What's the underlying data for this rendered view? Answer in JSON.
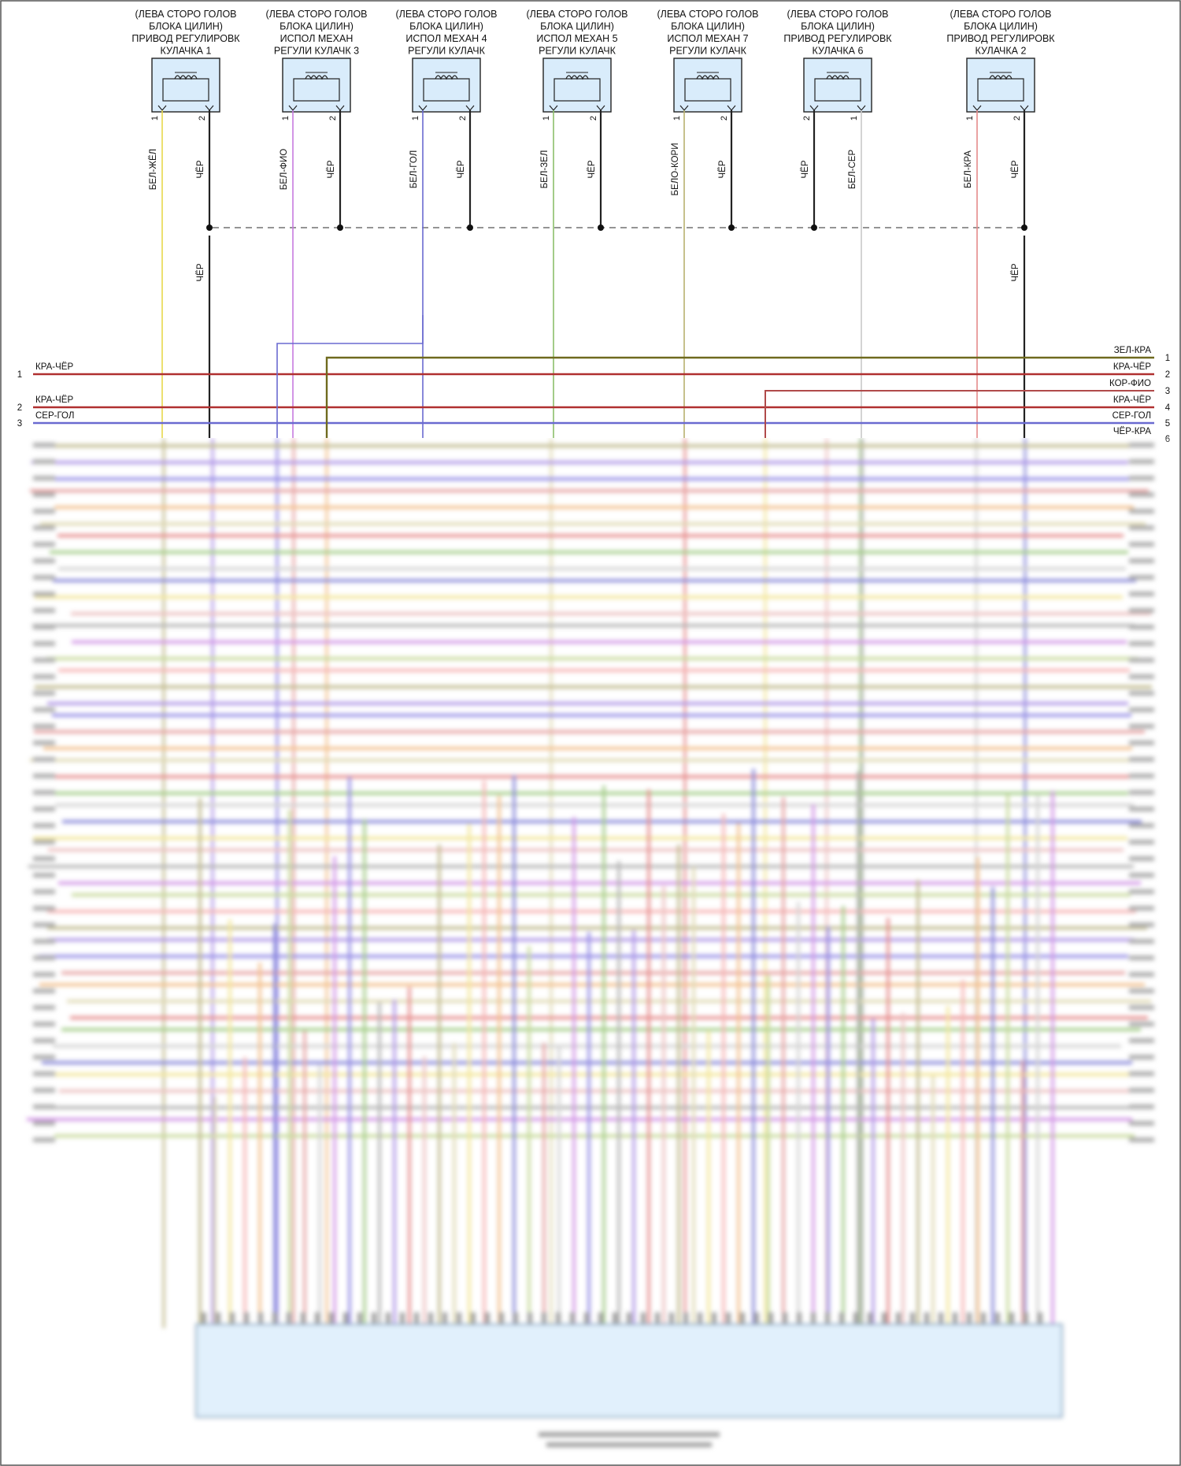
{
  "actuators": [
    {
      "id": "act-1",
      "title": [
        "(ЛЕВА СТОРО ГОЛОВ",
        "БЛОКА ЦИЛИН)",
        "ПРИВОД РЕГУЛИРОВК",
        "КУЛАЧКА 1"
      ],
      "pins": [
        {
          "num": "1",
          "wire": "БЕЛ-ЖЁЛ",
          "color": "#e8d84c"
        },
        {
          "num": "2",
          "wire": "ЧЁР",
          "color": "#222222"
        }
      ]
    },
    {
      "id": "act-3",
      "title": [
        "(ЛЕВА СТОРО ГОЛОВ",
        "БЛОКА ЦИЛИН)",
        "ИСПОЛ МЕХАН",
        "РЕГУЛИ КУЛАЧК 3"
      ],
      "pins": [
        {
          "num": "1",
          "wire": "БЕЛ-ФИО",
          "color": "#c77be0"
        },
        {
          "num": "2",
          "wire": "ЧЁР",
          "color": "#222222"
        }
      ]
    },
    {
      "id": "act-4",
      "title": [
        "(ЛЕВА СТОРО ГОЛОВ",
        "БЛОКА ЦИЛИН)",
        "ИСПОЛ МЕХАН 4",
        "РЕГУЛИ КУЛАЧК"
      ],
      "pins": [
        {
          "num": "1",
          "wire": "БЕЛ-ГОЛ",
          "color": "#6a6ad0"
        },
        {
          "num": "2",
          "wire": "ЧЁР",
          "color": "#222222"
        }
      ]
    },
    {
      "id": "act-5",
      "title": [
        "(ЛЕВА СТОРО ГОЛОВ",
        "БЛОКА ЦИЛИН)",
        "ИСПОЛ МЕХАН 5",
        "РЕГУЛИ КУЛАЧК"
      ],
      "pins": [
        {
          "num": "1",
          "wire": "БЕЛ-ЗЕЛ",
          "color": "#8cc06a"
        },
        {
          "num": "2",
          "wire": "ЧЁР",
          "color": "#222222"
        }
      ]
    },
    {
      "id": "act-7",
      "title": [
        "(ЛЕВА СТОРО ГОЛОВ",
        "БЛОКА ЦИЛИН)",
        "ИСПОЛ МЕХАН 7",
        "РЕГУЛИ КУЛАЧК"
      ],
      "pins": [
        {
          "num": "1",
          "wire": "БЕЛО-КОРИ",
          "color": "#b8b070"
        },
        {
          "num": "2",
          "wire": "ЧЁР",
          "color": "#222222"
        }
      ]
    },
    {
      "id": "act-6",
      "title": [
        "(ЛЕВА СТОРО ГОЛОВ",
        "БЛОКА ЦИЛИН)",
        "ПРИВОД РЕГУЛИРОВК",
        "КУЛАЧКА 6"
      ],
      "pins": [
        {
          "num": "2",
          "wire": "ЧЁР",
          "color": "#222222"
        },
        {
          "num": "1",
          "wire": "БЕЛ-СЕР",
          "color": "#c8c8c8"
        }
      ]
    },
    {
      "id": "act-2",
      "title": [
        "(ЛЕВА СТОРО ГОЛОВ",
        "БЛОКА ЦИЛИН)",
        "ПРИВОД РЕГУЛИРОВК",
        "КУЛАЧКА 2"
      ],
      "pins": [
        {
          "num": "1",
          "wire": "БЕЛ-КРА",
          "color": "#e48a8a"
        },
        {
          "num": "2",
          "wire": "ЧЁР",
          "color": "#222222"
        }
      ]
    }
  ],
  "ground_wire_labels": [
    "ЧЁР",
    "ЧЁР"
  ],
  "left_bus": [
    {
      "num": "1",
      "wire": "КРА-ЧЁР",
      "color": "#b03030"
    },
    {
      "num": "2",
      "wire": "КРА-ЧЁР",
      "color": "#b03030"
    },
    {
      "num": "3",
      "wire": "СЕР-ГОЛ",
      "color": "#6a6ad0"
    }
  ],
  "right_bus": [
    {
      "num": "1",
      "wire": "ЗЕЛ-КРА",
      "color": "#6f6a1e"
    },
    {
      "num": "2",
      "wire": "КРА-ЧЁР",
      "color": "#b03030"
    },
    {
      "num": "3",
      "wire": "КОР-ФИО",
      "color": "#b04a4a"
    },
    {
      "num": "4",
      "wire": "КРА-ЧЁР",
      "color": "#b03030"
    },
    {
      "num": "5",
      "wire": "СЕР-ГОЛ",
      "color": "#6a6ad0"
    },
    {
      "num": "6",
      "wire": "ЧЁР-КРА",
      "color": "#e07070"
    }
  ],
  "colors": {
    "actuator_fill": "#d9ecfb",
    "ecu_fill": "#d9ecfb",
    "ground_bus": "#555555"
  }
}
